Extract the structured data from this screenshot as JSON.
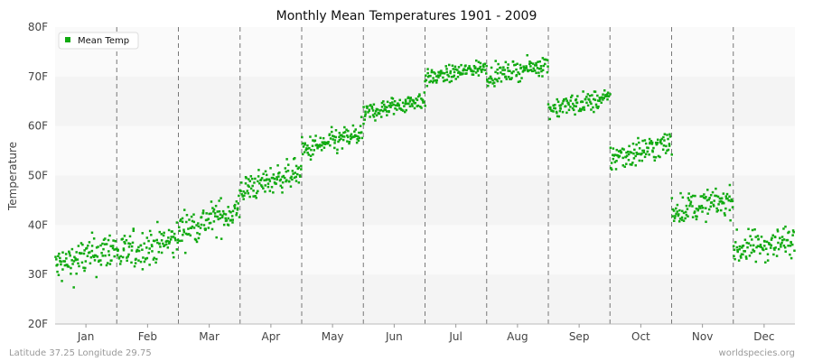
{
  "chart_data": {
    "type": "scatter",
    "title": "Monthly Mean Temperatures 1901 - 2009",
    "ylabel": "Temperature",
    "xlabel": "",
    "ylim": [
      20,
      80
    ],
    "y_ticks": [
      "20F",
      "30F",
      "40F",
      "50F",
      "60F",
      "70F",
      "80F"
    ],
    "y_tick_values": [
      20,
      30,
      40,
      50,
      60,
      70,
      80
    ],
    "categories": [
      "Jan",
      "Feb",
      "Mar",
      "Apr",
      "May",
      "Jun",
      "Jul",
      "Aug",
      "Sep",
      "Oct",
      "Nov",
      "Dec"
    ],
    "grid": true,
    "legend": {
      "position": "top-left"
    },
    "series": [
      {
        "name": "Mean Temp",
        "color": "#11aa11",
        "points_per_month": 109,
        "monthly_summary": [
          {
            "month": "Jan",
            "start": 31.5,
            "end": 35.5,
            "spread": 3.2
          },
          {
            "month": "Feb",
            "start": 34.0,
            "end": 37.0,
            "spread": 3.0
          },
          {
            "month": "Mar",
            "start": 39.0,
            "end": 43.0,
            "spread": 2.8
          },
          {
            "month": "Apr",
            "start": 47.0,
            "end": 51.0,
            "spread": 2.2
          },
          {
            "month": "May",
            "start": 55.0,
            "end": 58.5,
            "spread": 2.0
          },
          {
            "month": "Jun",
            "start": 62.5,
            "end": 65.5,
            "spread": 1.5
          },
          {
            "month": "Jul",
            "start": 69.5,
            "end": 72.0,
            "spread": 1.3
          },
          {
            "month": "Aug",
            "start": 70.0,
            "end": 72.5,
            "spread": 1.5
          },
          {
            "month": "Sep",
            "start": 63.5,
            "end": 65.5,
            "spread": 1.7
          },
          {
            "month": "Oct",
            "start": 53.5,
            "end": 56.5,
            "spread": 2.3
          },
          {
            "month": "Nov",
            "start": 43.0,
            "end": 45.0,
            "spread": 2.3
          },
          {
            "month": "Dec",
            "start": 35.0,
            "end": 37.0,
            "spread": 2.6
          }
        ]
      }
    ]
  },
  "footer": {
    "location": "Latitude 37.25 Longitude 29.75",
    "source": "worldspecies.org"
  }
}
